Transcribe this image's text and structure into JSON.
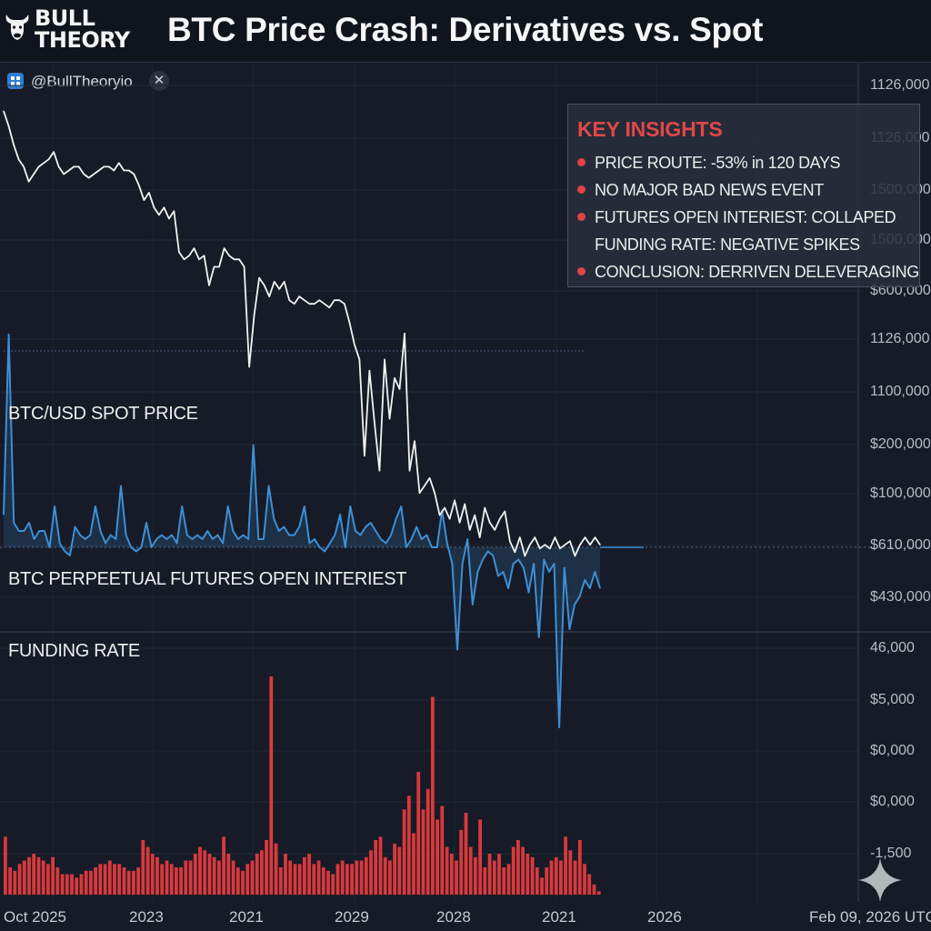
{
  "header": {
    "logo_text": [
      "BULL",
      "THEORY"
    ],
    "title": "BTC Price Crash: Derivatives vs. Spot"
  },
  "chip": {
    "handle": "@BullTheoryio",
    "close": "✕"
  },
  "panel_labels": {
    "spot": "BTC/USD SPOT PRICE",
    "oi": "BTC PERPEETUAL FUTURES OPEN INTERIEST",
    "funding": "FUNDING RATE"
  },
  "insights": {
    "title": "KEY INSIGHTS",
    "items": [
      {
        "bullet": true,
        "text": "PRICE ROUTE: -53% in 120 DAYS"
      },
      {
        "bullet": true,
        "text": "NO MAJOR BAD NEWS EVENT"
      },
      {
        "bullet": true,
        "text": "FUTURES OPEN INTERIEST: COLLAPED"
      },
      {
        "bullet": false,
        "text": "FUNDING RATE: NEGATIVE SPIKES"
      },
      {
        "bullet": true,
        "text": "CONCLUSION: DERRIVEN DELEVERAGING"
      }
    ]
  },
  "y_axis_labels": [
    "1126,000",
    "1126,000",
    "1500,000",
    "1500,000",
    "$600,000",
    "1126,000",
    "1100,000",
    "$200,000",
    "$100,000",
    "$610,000",
    "$430,000",
    "46,000",
    "$5,000",
    "$0,000",
    "$0,000",
    "-1,500"
  ],
  "x_axis_labels": [
    "Oct 2025",
    "2023",
    "2021",
    "2029",
    "2028",
    "2021",
    "2026",
    "Feb 09, 2026 UTC"
  ],
  "colors": {
    "background": "#161b27",
    "price_line": "#f2f2f2",
    "oi_line": "#3d8fd6",
    "funding_bars": "#d9393c",
    "insight_title": "#e04848"
  },
  "chart_data": [
    {
      "type": "line",
      "title": "BTC/USD SPOT PRICE",
      "series": [
        {
          "name": "BTC/USD spot",
          "values": [
            97,
            93,
            88,
            84,
            82,
            78,
            80,
            82,
            83,
            84,
            86,
            82,
            80,
            81,
            82,
            82,
            80,
            79,
            80,
            81,
            82,
            82,
            81,
            83,
            81,
            81,
            80,
            77,
            73,
            75,
            71,
            69,
            71,
            68,
            70,
            59,
            57,
            58,
            60,
            57,
            58,
            50,
            55,
            55,
            60,
            58,
            57,
            57,
            55,
            28,
            42,
            52,
            50,
            47,
            51,
            49,
            51,
            46,
            45,
            47,
            46,
            45,
            45,
            46,
            45,
            44,
            46,
            46,
            45,
            40,
            34,
            30,
            4,
            27,
            13,
            0,
            30,
            14,
            25,
            22,
            37,
            0,
            8,
            -6,
            -4,
            -2,
            -6,
            -12,
            -10,
            -13,
            -8,
            -14,
            -9,
            -16,
            -12,
            -18,
            -10,
            -14,
            -16,
            -13,
            -11,
            -19,
            -22,
            -18,
            -23,
            -20,
            -18,
            -21,
            -20,
            -21,
            -18,
            -21,
            -20,
            -19,
            -23,
            -20,
            -18,
            -20,
            -18,
            -20
          ]
        }
      ],
      "ylim": [
        -30,
        100
      ]
    },
    {
      "type": "line",
      "title": "BTC PERPEETUAL FUTURES OPEN INTERIEST",
      "series": [
        {
          "name": "Open interest",
          "values": [
            8,
            52,
            6,
            4,
            4,
            6,
            2,
            4,
            4,
            0,
            10,
            1,
            -1,
            -2,
            5,
            3,
            2,
            3,
            10,
            4,
            1,
            3,
            2,
            15,
            3,
            0,
            -1,
            0,
            6,
            0,
            2,
            3,
            2,
            3,
            1,
            10,
            3,
            2,
            3,
            2,
            4,
            2,
            3,
            1,
            10,
            4,
            2,
            3,
            2,
            25,
            2,
            2,
            15,
            7,
            4,
            5,
            3,
            3,
            5,
            10,
            1,
            2,
            0,
            -1,
            1,
            3,
            8,
            0,
            10,
            4,
            3,
            5,
            6,
            4,
            2,
            1,
            3,
            7,
            10,
            0,
            2,
            5,
            2,
            3,
            0,
            0,
            9,
            1,
            -4,
            -25,
            -4,
            2,
            -14,
            -6,
            -3,
            -1,
            -2,
            -7,
            -6,
            -10,
            -4,
            -3,
            -5,
            -11,
            -4,
            -22,
            -3,
            -6,
            -4,
            -44,
            -5,
            -20,
            -14,
            -12,
            -8,
            -10,
            -6,
            -10
          ]
        }
      ],
      "ylim": [
        -50,
        60
      ]
    },
    {
      "type": "bar",
      "title": "FUNDING RATE",
      "values": [
        17,
        8,
        7,
        9,
        10,
        11,
        12,
        11,
        10,
        9,
        11,
        8,
        6,
        6,
        6,
        5,
        6,
        7,
        7,
        8,
        9,
        9,
        10,
        9,
        9,
        8,
        7,
        7,
        8,
        16,
        14,
        12,
        11,
        9,
        10,
        9,
        8,
        8,
        10,
        10,
        12,
        14,
        13,
        12,
        11,
        10,
        17,
        12,
        10,
        8,
        7,
        9,
        10,
        12,
        13,
        16,
        64,
        15,
        8,
        12,
        10,
        9,
        9,
        11,
        12,
        9,
        10,
        8,
        7,
        6,
        9,
        10,
        9,
        9,
        10,
        10,
        11,
        13,
        16,
        17,
        11,
        10,
        15,
        14,
        25,
        29,
        18,
        36,
        25,
        31,
        58,
        22,
        26,
        14,
        12,
        10,
        19,
        24,
        14,
        11,
        22,
        8,
        12,
        10,
        12,
        8,
        9,
        14,
        16,
        14,
        12,
        11,
        8,
        5,
        8,
        10,
        11,
        10,
        17,
        13,
        10,
        16,
        9,
        6,
        3,
        1
      ],
      "ylim": [
        0,
        80
      ]
    }
  ]
}
